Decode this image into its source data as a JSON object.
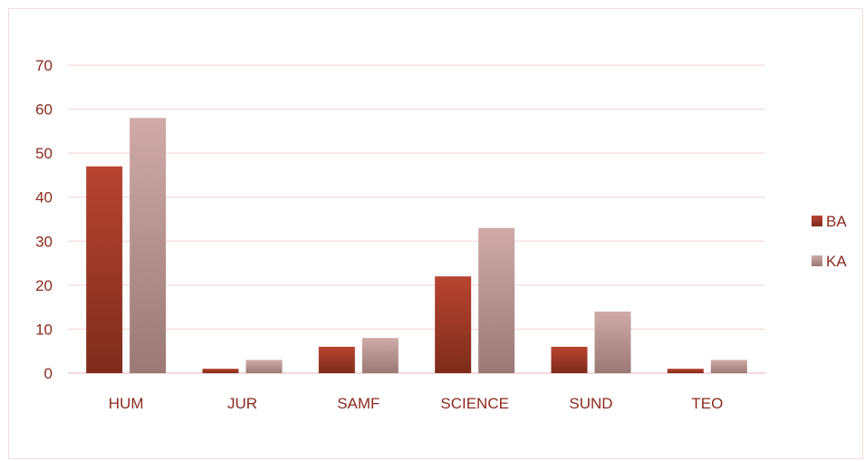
{
  "chart_data": {
    "type": "bar",
    "title": "",
    "xlabel": "",
    "ylabel": "",
    "categories": [
      "HUM",
      "JUR",
      "SAMF",
      "SCIENCE",
      "SUND",
      "TEO"
    ],
    "series": [
      {
        "name": "BA",
        "values": [
          47,
          1,
          6,
          22,
          6,
          1
        ],
        "color_top": "#b84431",
        "color_bottom": "#7e2c1c"
      },
      {
        "name": "KA",
        "values": [
          58,
          3,
          8,
          33,
          14,
          3
        ],
        "color_top": "#cfaaa8",
        "color_bottom": "#9a7977"
      }
    ],
    "ylim": [
      0,
      70
    ],
    "yticks": [
      0,
      10,
      20,
      30,
      40,
      50,
      60,
      70
    ],
    "grid": true,
    "legend_position": "right"
  }
}
